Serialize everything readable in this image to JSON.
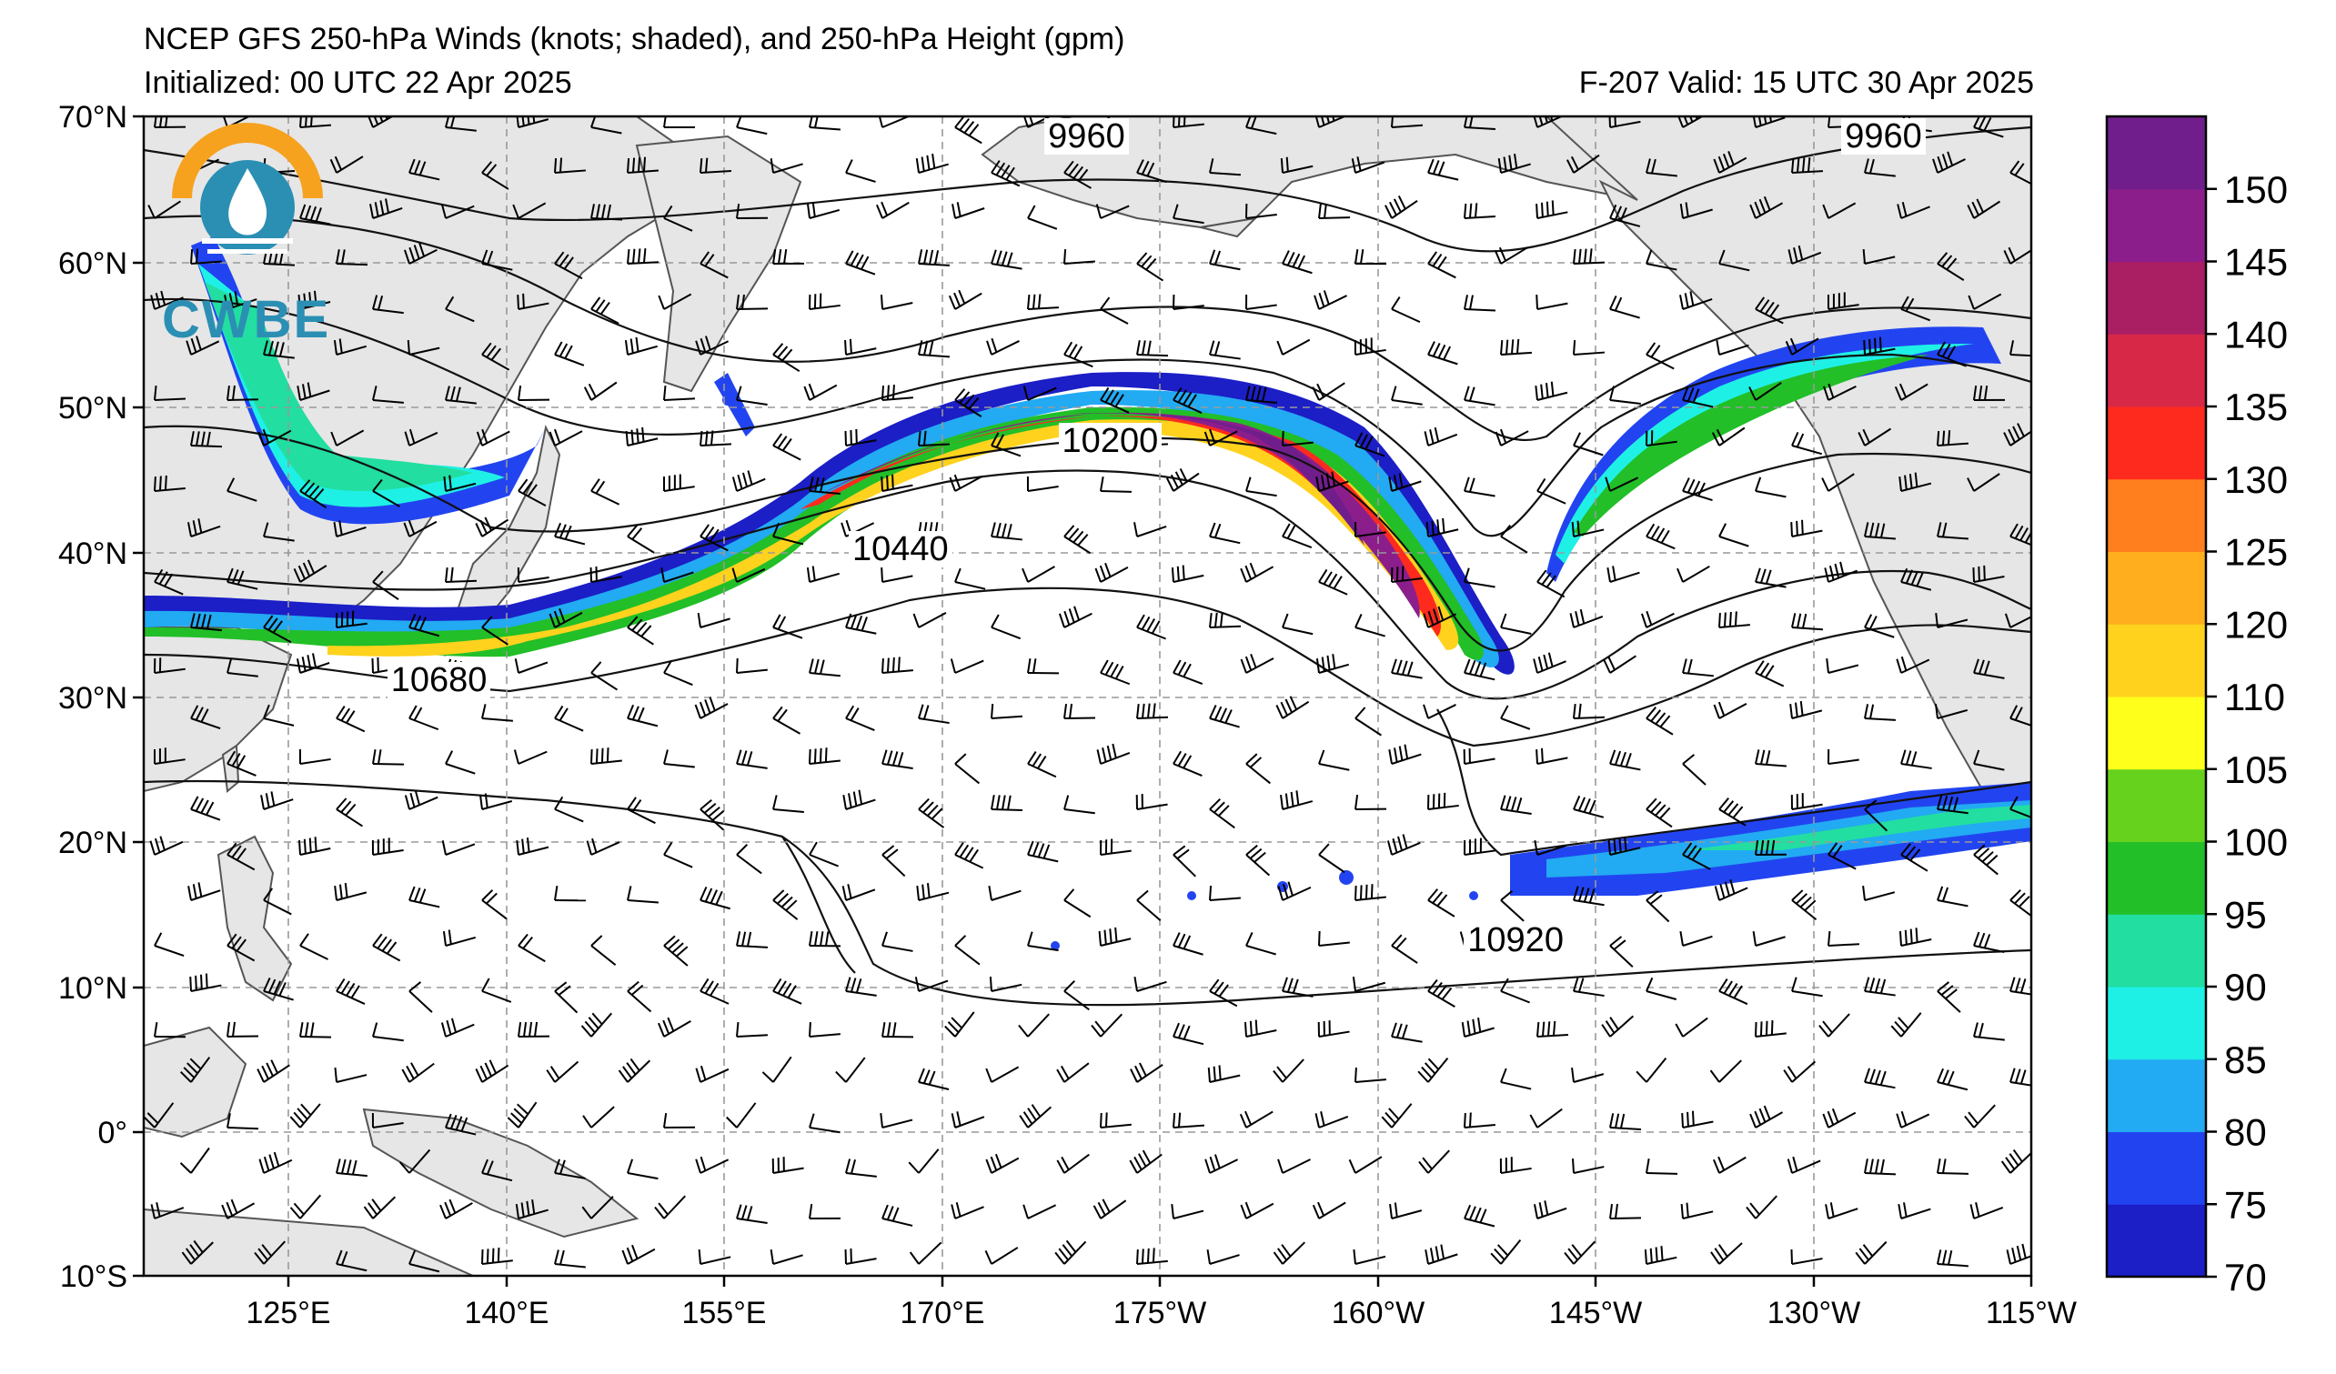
{
  "header": {
    "title": "NCEP GFS 250-hPa Winds (knots; shaded), and 250-hPa Height (gpm)",
    "initialized": "Initialized: 00 UTC 22 Apr 2025",
    "valid": "F-207  Valid: 15 UTC 30 Apr 2025"
  },
  "logo": {
    "text": "CWBE",
    "colors": {
      "ring": "#f6a21e",
      "body": "#2b8fb3"
    }
  },
  "lat_labels": [
    "70°N",
    "60°N",
    "50°N",
    "40°N",
    "30°N",
    "20°N",
    "10°N",
    "0°",
    "10°S"
  ],
  "lon_labels": [
    "125°E",
    "140°E",
    "155°E",
    "170°E",
    "175°W",
    "160°W",
    "145°W",
    "130°W",
    "115°W"
  ],
  "colorbar": {
    "labels": [
      "150",
      "145",
      "140",
      "135",
      "130",
      "125",
      "120",
      "110",
      "105",
      "100",
      "95",
      "90",
      "85",
      "80",
      "75",
      "70"
    ],
    "colors": [
      "#1c1ec6",
      "#2244f0",
      "#22aaf2",
      "#1ff0e6",
      "#22dea0",
      "#22bf28",
      "#66d21e",
      "#ffff1c",
      "#ffd21e",
      "#ffae1e",
      "#ff7e1e",
      "#ff2a1e",
      "#d82848",
      "#aa1e64",
      "#8c1e8c",
      "#701e8c"
    ]
  },
  "height_contours": [
    {
      "label": "9960",
      "lat": 68.5,
      "lon": 178
    },
    {
      "label": "9960",
      "lat": 68.5,
      "lon": -125
    },
    {
      "label": "10200",
      "lat": 47.5,
      "lon": 179
    },
    {
      "label": "10440",
      "lat": 40,
      "lon": 164
    },
    {
      "label": "10680",
      "lat": 31,
      "lon": 131
    },
    {
      "label": "10920",
      "lat": 13,
      "lon": -152
    }
  ]
}
